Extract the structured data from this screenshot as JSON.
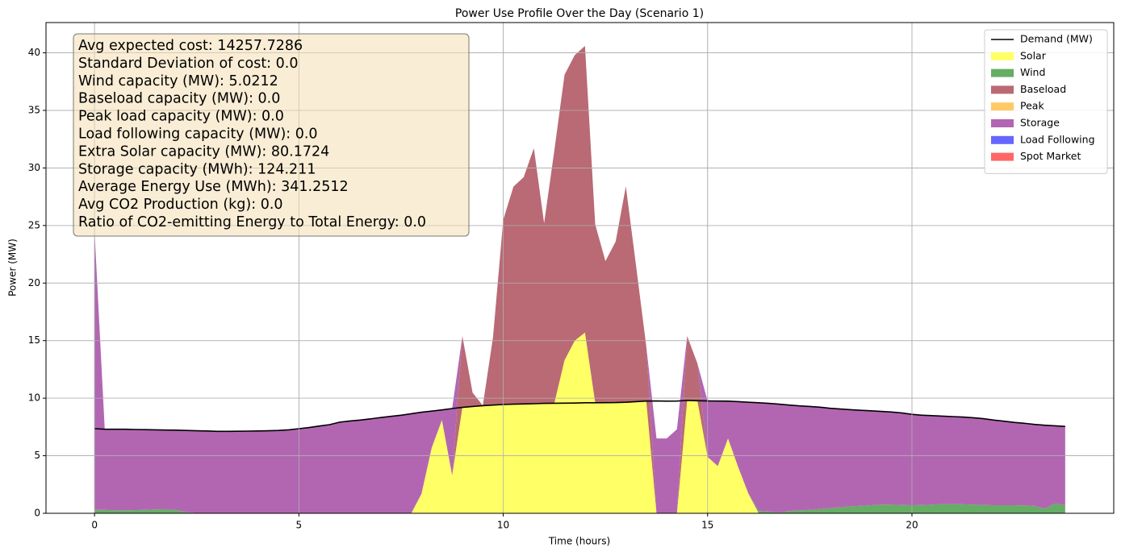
{
  "chart_data": {
    "type": "stacked_area",
    "title": "Power Use Profile Over the Day (Scenario 1)",
    "x_label": "Time (hours)",
    "y_label": "Power (MW)",
    "xlim": [
      -1.1875,
      24.9375
    ],
    "ylim": [
      0,
      42.63
    ],
    "xticks": [
      0,
      5,
      10,
      15,
      20
    ],
    "yticks": [
      0,
      5,
      10,
      15,
      20,
      25,
      30,
      35,
      40
    ],
    "grid": true,
    "legend": "upper right",
    "annotation": [
      "Avg expected cost: 14257.7286",
      "Standard Deviation of cost: 0.0",
      "Wind capacity (MW): 5.0212",
      "Baseload capacity (MW): 0.0",
      "Peak load capacity (MW): 0.0",
      "Load following capacity (MW): 0.0",
      "Extra Solar capacity (MW): 80.1724",
      "Storage capacity (MWh): 124.211",
      "Average Energy Use (MWh): 341.2512",
      "Avg CO2 Production (kg): 0.0",
      "Ratio of CO2-emitting Energy to Total Energy: 0.0"
    ],
    "x": [
      0,
      0.25,
      0.5,
      0.75,
      1,
      1.25,
      1.5,
      1.75,
      2,
      2.25,
      2.5,
      2.75,
      3,
      3.25,
      3.5,
      3.75,
      4,
      4.25,
      4.5,
      4.75,
      5,
      5.25,
      5.5,
      5.75,
      6,
      6.25,
      6.5,
      6.75,
      7,
      7.25,
      7.5,
      7.75,
      8,
      8.25,
      8.5,
      8.75,
      9,
      9.25,
      9.5,
      9.75,
      10,
      10.25,
      10.5,
      10.75,
      11,
      11.25,
      11.5,
      11.75,
      12,
      12.25,
      12.5,
      12.75,
      13,
      13.25,
      13.5,
      13.75,
      14,
      14.25,
      14.5,
      14.75,
      15,
      15.25,
      15.5,
      15.75,
      16,
      16.25,
      16.5,
      16.75,
      17,
      17.25,
      17.5,
      17.75,
      18,
      18.25,
      18.5,
      18.75,
      19,
      19.25,
      19.5,
      19.75,
      20,
      20.25,
      20.5,
      20.75,
      21,
      21.25,
      21.5,
      21.75,
      22,
      22.25,
      22.5,
      22.75,
      23,
      23.25,
      23.5,
      23.75
    ],
    "line": {
      "name": "Demand (MW)",
      "color": "#000000",
      "values": [
        7.35,
        7.3,
        7.3,
        7.3,
        7.28,
        7.27,
        7.25,
        7.23,
        7.22,
        7.2,
        7.17,
        7.15,
        7.12,
        7.12,
        7.13,
        7.14,
        7.15,
        7.17,
        7.2,
        7.25,
        7.35,
        7.45,
        7.58,
        7.7,
        7.92,
        8.02,
        8.1,
        8.2,
        8.32,
        8.42,
        8.52,
        8.65,
        8.78,
        8.88,
        8.98,
        9.1,
        9.2,
        9.28,
        9.35,
        9.4,
        9.45,
        9.48,
        9.5,
        9.52,
        9.55,
        9.56,
        9.57,
        9.58,
        9.6,
        9.6,
        9.61,
        9.62,
        9.65,
        9.7,
        9.75,
        9.76,
        9.74,
        9.75,
        9.8,
        9.78,
        9.76,
        9.75,
        9.74,
        9.7,
        9.65,
        9.6,
        9.55,
        9.48,
        9.4,
        9.33,
        9.28,
        9.22,
        9.12,
        9.06,
        9.0,
        8.95,
        8.9,
        8.85,
        8.8,
        8.72,
        8.6,
        8.52,
        8.48,
        8.44,
        8.4,
        8.36,
        8.3,
        8.22,
        8.1,
        8.0,
        7.9,
        7.82,
        7.72,
        7.65,
        7.6,
        7.55
      ]
    },
    "series": [
      {
        "name": "Solar",
        "color": "#ffff66",
        "values": [
          0,
          0,
          0,
          0,
          0,
          0,
          0,
          0,
          0,
          0,
          0,
          0,
          0,
          0,
          0,
          0,
          0,
          0,
          0,
          0,
          0,
          0,
          0,
          0,
          0,
          0,
          0,
          0,
          0,
          0,
          0,
          0,
          1.7,
          5.7,
          8.1,
          3.3,
          9.2,
          9.28,
          9.35,
          9.4,
          9.45,
          9.48,
          9.5,
          9.52,
          9.55,
          9.56,
          13.3,
          15.0,
          15.7,
          9.6,
          9.61,
          9.62,
          9.65,
          9.7,
          9.75,
          0,
          0,
          0,
          9.8,
          9.78,
          4.9,
          4.1,
          6.5,
          4.0,
          1.7,
          0,
          0,
          0,
          0,
          0,
          0,
          0,
          0,
          0,
          0,
          0,
          0,
          0,
          0,
          0,
          0,
          0,
          0,
          0,
          0,
          0,
          0,
          0,
          0,
          0,
          0,
          0,
          0,
          0,
          0,
          0
        ]
      },
      {
        "name": "Wind",
        "color": "#66ad66",
        "values": [
          0.3,
          0.3,
          0.25,
          0.25,
          0.28,
          0.3,
          0.33,
          0.35,
          0.28,
          0.1,
          0.02,
          0,
          0,
          0,
          0,
          0,
          0,
          0,
          0,
          0,
          0,
          0,
          0,
          0,
          0,
          0,
          0,
          0,
          0,
          0,
          0,
          0,
          0,
          0,
          0,
          0,
          0,
          0,
          0,
          0,
          0,
          0,
          0,
          0,
          0,
          0,
          0,
          0,
          0,
          0,
          0,
          0,
          0,
          0,
          0,
          0,
          0,
          0,
          0,
          0,
          0,
          0,
          0,
          0,
          0,
          0.2,
          0.15,
          0.05,
          0.2,
          0.25,
          0.3,
          0.38,
          0.45,
          0.52,
          0.6,
          0.65,
          0.7,
          0.75,
          0.75,
          0.72,
          0.7,
          0.72,
          0.75,
          0.8,
          0.8,
          0.78,
          0.75,
          0.72,
          0.7,
          0.7,
          0.7,
          0.68,
          0.65,
          0.4,
          0.85,
          0.7
        ]
      },
      {
        "name": "Baseload",
        "color": "#b96a74",
        "values": [
          0,
          0,
          0,
          0,
          0,
          0,
          0,
          0,
          0,
          0,
          0,
          0,
          0,
          0,
          0,
          0,
          0,
          0,
          0,
          0,
          0,
          0,
          0,
          0,
          0,
          0,
          0,
          0,
          0,
          0,
          0,
          0,
          0,
          0,
          0,
          0,
          6.2,
          1.2,
          0,
          5.9,
          16.05,
          18.9,
          19.7,
          22.2,
          15.65,
          21.95,
          24.8,
          24.8,
          24.9,
          15.5,
          12.3,
          13.98,
          18.75,
          11.8,
          4.75,
          0,
          0,
          0,
          5.6,
          3.25,
          0,
          0,
          0,
          0,
          0,
          0,
          0,
          0,
          0,
          0,
          0,
          0,
          0,
          0,
          0,
          0,
          0,
          0,
          0,
          0,
          0,
          0,
          0,
          0,
          0,
          0,
          0,
          0,
          0,
          0,
          0,
          0,
          0,
          0,
          0,
          0
        ]
      },
      {
        "name": "Peak",
        "color": "#ffc966",
        "values": [
          0,
          0,
          0,
          0,
          0,
          0,
          0,
          0,
          0,
          0,
          0,
          0,
          0,
          0,
          0,
          0,
          0,
          0,
          0,
          0,
          0,
          0,
          0,
          0,
          0,
          0,
          0,
          0,
          0,
          0,
          0,
          0,
          0,
          0,
          0,
          0,
          0,
          0,
          0,
          0,
          0,
          0,
          0,
          0,
          0,
          0,
          0,
          0,
          0,
          0,
          0,
          0,
          0,
          0,
          0,
          0,
          0,
          0,
          0,
          0,
          0,
          0,
          0,
          0,
          0,
          0,
          0,
          0,
          0,
          0,
          0,
          0,
          0,
          0,
          0,
          0,
          0,
          0,
          0,
          0,
          0,
          0,
          0,
          0,
          0,
          0,
          0,
          0,
          0,
          0,
          0,
          0,
          0,
          0,
          0,
          0
        ]
      },
      {
        "name": "Storage",
        "color": "#b266b2",
        "values": [
          24.2,
          7.0,
          7.05,
          7.05,
          7.0,
          6.97,
          6.92,
          6.88,
          6.94,
          7.1,
          7.15,
          7.15,
          7.12,
          7.12,
          7.13,
          7.14,
          7.15,
          7.17,
          7.2,
          7.25,
          7.35,
          7.45,
          7.58,
          7.7,
          7.92,
          8.02,
          8.1,
          8.2,
          8.32,
          8.42,
          8.52,
          8.65,
          7.08,
          3.18,
          0.88,
          5.8,
          0,
          0,
          0,
          0,
          0,
          0,
          0,
          0,
          0,
          0,
          0,
          0,
          0,
          0,
          0,
          0,
          0,
          0,
          0,
          6.5,
          6.5,
          7.3,
          0,
          0,
          4.86,
          5.65,
          3.24,
          5.7,
          7.95,
          9.4,
          9.4,
          9.43,
          9.2,
          9.08,
          8.98,
          8.84,
          8.67,
          8.54,
          8.4,
          8.3,
          8.2,
          8.1,
          8.05,
          8.0,
          7.9,
          7.8,
          7.73,
          7.64,
          7.6,
          7.58,
          7.55,
          7.5,
          7.4,
          7.3,
          7.2,
          7.14,
          7.07,
          7.25,
          6.75,
          6.85
        ]
      },
      {
        "name": "Load Following",
        "color": "#6666ff",
        "values": [
          0,
          0,
          0,
          0,
          0,
          0,
          0,
          0,
          0,
          0,
          0,
          0,
          0,
          0,
          0,
          0,
          0,
          0,
          0,
          0,
          0,
          0,
          0,
          0,
          0,
          0,
          0,
          0,
          0,
          0,
          0,
          0,
          0,
          0,
          0,
          0,
          0,
          0,
          0,
          0,
          0,
          0,
          0,
          0,
          0,
          0,
          0,
          0,
          0,
          0,
          0,
          0,
          0,
          0,
          0,
          0,
          0,
          0,
          0,
          0,
          0,
          0,
          0,
          0,
          0,
          0,
          0,
          0,
          0,
          0,
          0,
          0,
          0,
          0,
          0,
          0,
          0,
          0,
          0,
          0,
          0,
          0,
          0,
          0,
          0,
          0,
          0,
          0,
          0,
          0,
          0,
          0,
          0,
          0,
          0,
          0
        ]
      },
      {
        "name": "Spot Market",
        "color": "#ff6666",
        "values": [
          0,
          0,
          0,
          0,
          0,
          0,
          0,
          0,
          0,
          0,
          0,
          0,
          0,
          0,
          0,
          0,
          0,
          0,
          0,
          0,
          0,
          0,
          0,
          0,
          0,
          0,
          0,
          0,
          0,
          0,
          0,
          0,
          0,
          0,
          0,
          0,
          0,
          0,
          0,
          0,
          0,
          0,
          0,
          0,
          0,
          0,
          0,
          0,
          0,
          0,
          0,
          0,
          0,
          0,
          0,
          0,
          0,
          0,
          0,
          0,
          0,
          0,
          0,
          0,
          0,
          0,
          0,
          0,
          0,
          0,
          0,
          0,
          0,
          0,
          0,
          0,
          0,
          0,
          0,
          0,
          0,
          0,
          0,
          0,
          0,
          0,
          0,
          0,
          0,
          0,
          0,
          0,
          0,
          0,
          0,
          0
        ]
      }
    ]
  }
}
